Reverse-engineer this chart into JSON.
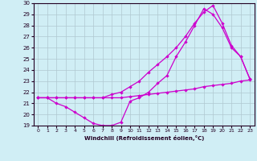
{
  "xlabel": "Windchill (Refroidissement éolien,°C)",
  "bg_color": "#d0eef5",
  "line_color": "#cc00cc",
  "grid_color": "#b0c8d0",
  "xlim": [
    -0.5,
    23.5
  ],
  "ylim": [
    19,
    30
  ],
  "xticks": [
    0,
    1,
    2,
    3,
    4,
    5,
    6,
    7,
    8,
    9,
    10,
    11,
    12,
    13,
    14,
    15,
    16,
    17,
    18,
    19,
    20,
    21,
    22,
    23
  ],
  "yticks": [
    19,
    20,
    21,
    22,
    23,
    24,
    25,
    26,
    27,
    28,
    29,
    30
  ],
  "line1_x": [
    0,
    1,
    2,
    3,
    4,
    5,
    6,
    7,
    8,
    9,
    10,
    11,
    12,
    13,
    14,
    15,
    16,
    17,
    18,
    19,
    20,
    21,
    22,
    23
  ],
  "line1_y": [
    21.5,
    21.5,
    21.5,
    21.5,
    21.5,
    21.5,
    21.5,
    21.5,
    21.5,
    21.5,
    21.6,
    21.7,
    21.8,
    21.9,
    22.0,
    22.1,
    22.2,
    22.3,
    22.5,
    22.6,
    22.7,
    22.8,
    23.0,
    23.1
  ],
  "line2_x": [
    0,
    1,
    2,
    3,
    4,
    5,
    6,
    7,
    8,
    9,
    10,
    11,
    12,
    13,
    14,
    15,
    16,
    17,
    18,
    19,
    20,
    21,
    22,
    23
  ],
  "line2_y": [
    21.5,
    21.5,
    21.0,
    20.7,
    20.2,
    19.7,
    19.2,
    19.0,
    19.0,
    19.3,
    21.2,
    21.5,
    22.0,
    22.8,
    23.5,
    25.2,
    26.5,
    28.0,
    29.5,
    29.0,
    27.8,
    26.0,
    25.2,
    23.2
  ],
  "line3_x": [
    0,
    1,
    2,
    3,
    4,
    5,
    6,
    7,
    8,
    9,
    10,
    11,
    12,
    13,
    14,
    15,
    16,
    17,
    18,
    19,
    20,
    21,
    22,
    23
  ],
  "line3_y": [
    21.5,
    21.5,
    21.5,
    21.5,
    21.5,
    21.5,
    21.5,
    21.5,
    21.8,
    22.0,
    22.5,
    23.0,
    23.8,
    24.5,
    25.2,
    26.0,
    27.0,
    28.2,
    29.2,
    29.8,
    28.2,
    26.2,
    25.2,
    23.2
  ]
}
